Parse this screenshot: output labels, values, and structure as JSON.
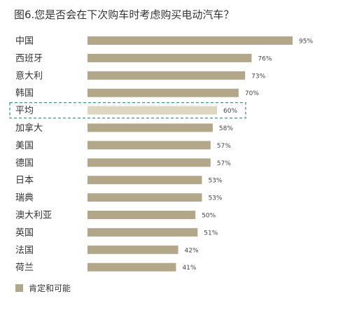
{
  "chart_data": {
    "type": "bar",
    "orientation": "horizontal",
    "title": "图6.您是否会在下次购车时考虑购买电动汽车？",
    "categories": [
      "中国",
      "西班牙",
      "意大利",
      "韩国",
      "平均",
      "加拿大",
      "美国",
      "德国",
      "日本",
      "瑞典",
      "澳大利亚",
      "英国",
      "法国",
      "荷兰"
    ],
    "value_labels": [
      "95%",
      "76%",
      "73%",
      "70%",
      "60%",
      "58%",
      "57%",
      "57%",
      "53%",
      "53%",
      "50%",
      "51%",
      "42%",
      "41%"
    ],
    "series": [
      {
        "name": "肯定和可能",
        "values": [
          95,
          76,
          73,
          70,
          60,
          58,
          57,
          57,
          53,
          53,
          50,
          51,
          42,
          41
        ]
      }
    ],
    "highlight_category": "平均",
    "xlim": [
      0,
      100
    ],
    "grid": false,
    "legend_position": "bottom-left"
  },
  "colors": {
    "bar": "#b2a789",
    "highlight_bar": "#dcd6c3",
    "highlight_border": "#4a8f8a"
  }
}
